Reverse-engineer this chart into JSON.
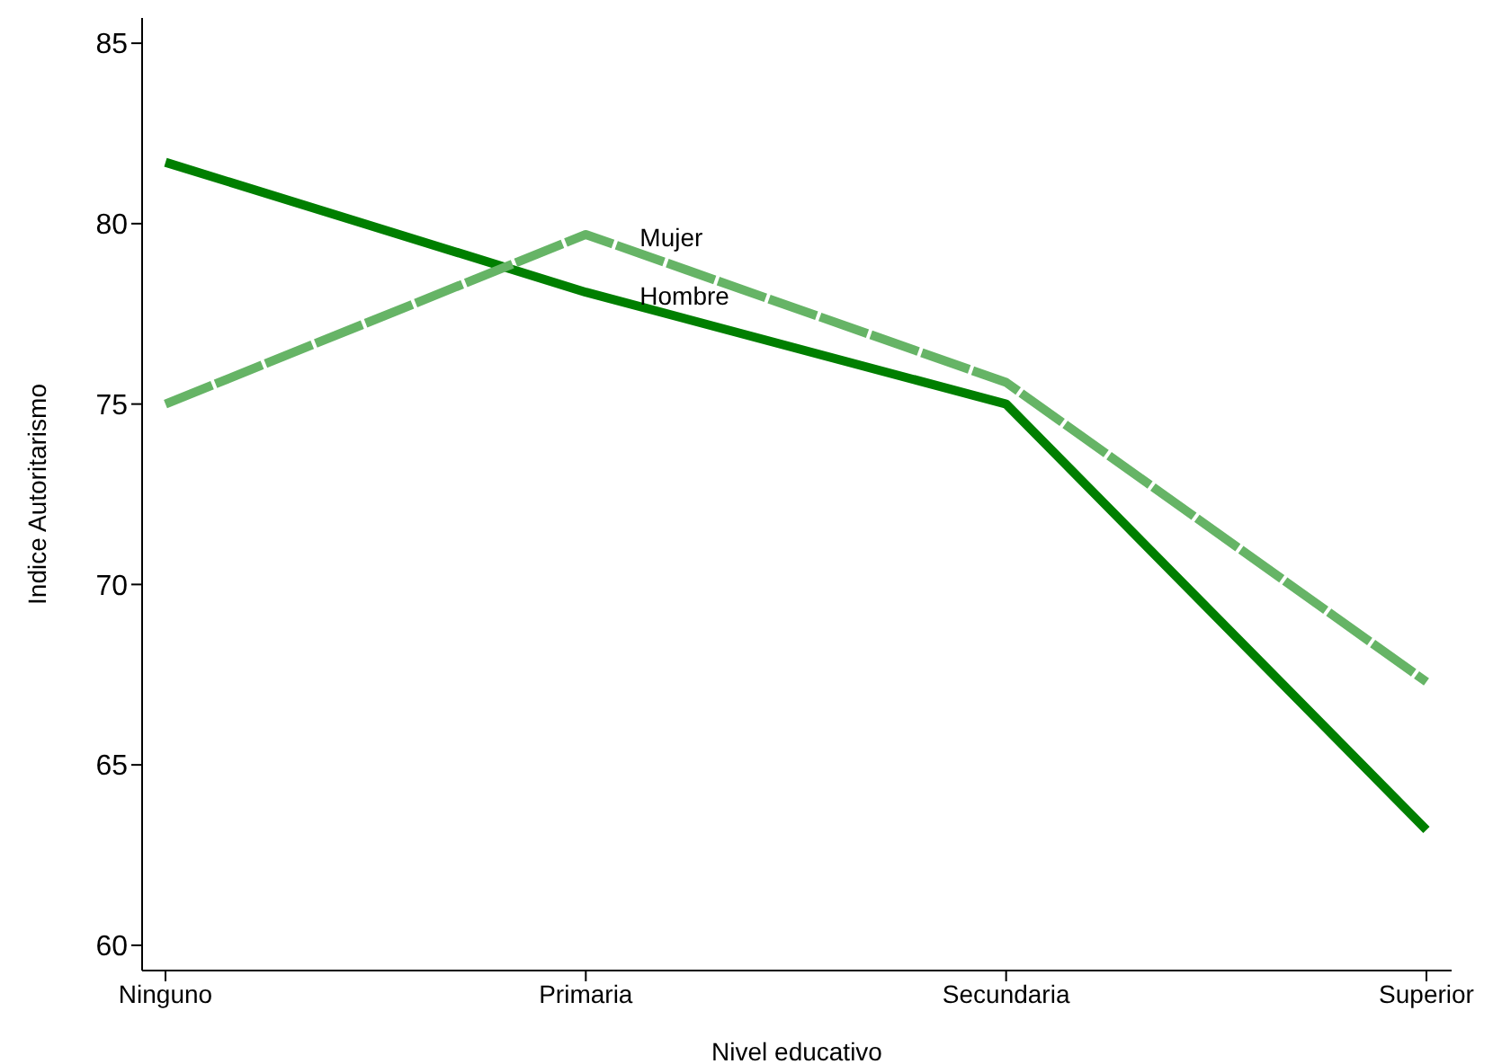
{
  "chart_data": {
    "type": "line",
    "xlabel": "Nivel educativo",
    "ylabel": "Indice Autoritarismo",
    "categories": [
      "Ninguno",
      "Primaria",
      "Secundaria",
      "Superior"
    ],
    "series": [
      {
        "name": "Hombre",
        "color": "#007f00",
        "values": [
          81.7,
          78.1,
          75.0,
          63.2
        ],
        "line_style": "solid"
      },
      {
        "name": "Mujer",
        "color": "#66b466",
        "values": [
          75.0,
          79.7,
          75.6,
          67.3
        ],
        "line_style": "dashed"
      }
    ],
    "ylim": [
      59.3,
      85.7
    ],
    "yticks": [
      60,
      65,
      70,
      75,
      80,
      85
    ],
    "grid": false,
    "legend": false,
    "marker": "none"
  }
}
